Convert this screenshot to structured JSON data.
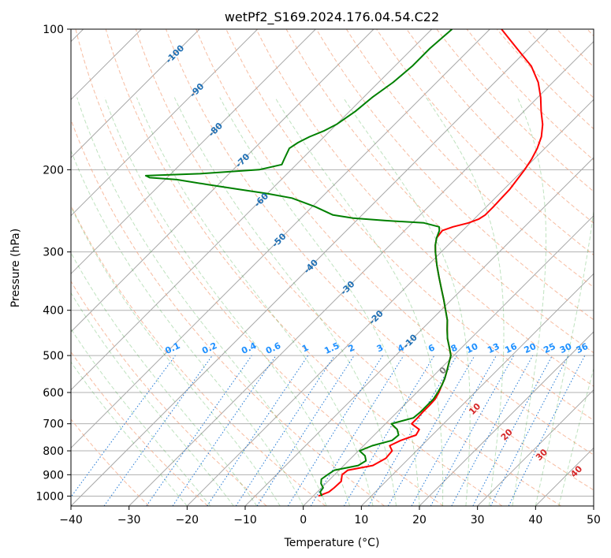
{
  "chart_data": {
    "type": "skew-t",
    "title": "wetPf2_S169.2024.176.04.54.C22",
    "xlabel": "Temperature (°C)",
    "ylabel": "Pressure (hPa)",
    "xlim": [
      -40,
      50
    ],
    "ylim": [
      1050,
      100
    ],
    "y_scale": "log",
    "grid": true,
    "x_ticks": [
      "−40",
      "−30",
      "−20",
      "−10",
      "0",
      "10",
      "20",
      "30",
      "40",
      "50"
    ],
    "x_tick_values": [
      -40,
      -30,
      -20,
      -10,
      0,
      10,
      20,
      30,
      40,
      50
    ],
    "y_ticks": [
      "100",
      "200",
      "300",
      "400",
      "500",
      "600",
      "700",
      "800",
      "900",
      "1000"
    ],
    "y_tick_values": [
      100,
      200,
      300,
      400,
      500,
      600,
      700,
      800,
      900,
      1000
    ],
    "skew_deg": 45,
    "isotherm_labels": [
      {
        "text": "-100",
        "value": -100,
        "p": 113
      },
      {
        "text": "-90",
        "value": -90,
        "p": 135
      },
      {
        "text": "-80",
        "value": -80,
        "p": 164
      },
      {
        "text": "-70",
        "value": -70,
        "p": 191
      },
      {
        "text": "-60",
        "value": -60,
        "p": 232
      },
      {
        "text": "-50",
        "value": -50,
        "p": 283
      },
      {
        "text": "-40",
        "value": -40,
        "p": 322
      },
      {
        "text": "-30",
        "value": -30,
        "p": 358
      },
      {
        "text": "-20",
        "value": -20,
        "p": 414
      },
      {
        "text": "-10",
        "value": -10,
        "p": 466
      }
    ],
    "moist_adiabat_labels": [
      {
        "text": "0",
        "t": 24,
        "p": 538,
        "color": "#7f7f7f"
      },
      {
        "text": "10",
        "t": 29.5,
        "p": 650,
        "color": "#d62728"
      },
      {
        "text": "20",
        "t": 35,
        "p": 738,
        "color": "#d62728"
      },
      {
        "text": "30",
        "t": 41,
        "p": 815,
        "color": "#d62728"
      },
      {
        "text": "40",
        "t": 47,
        "p": 885,
        "color": "#d62728"
      }
    ],
    "mixing_ratio_labels": [
      "0.1",
      "0.2",
      "0.4",
      "0.6",
      "1",
      "1.5",
      "2",
      "3",
      "4",
      "6",
      "8",
      "10",
      "13",
      "16",
      "20",
      "25",
      "30",
      "36"
    ],
    "mixing_ratio_values": [
      0.1,
      0.2,
      0.4,
      0.6,
      1,
      1.5,
      2,
      3,
      4,
      6,
      8,
      10,
      13,
      16,
      20,
      25,
      30,
      36
    ],
    "series": [
      {
        "color": "#ff0000",
        "p": [
          1000,
          980,
          960,
          930,
          900,
          880,
          860,
          830,
          800,
          780,
          760,
          740,
          720,
          700,
          680,
          660,
          640,
          620,
          600,
          580,
          560,
          540,
          520,
          500,
          480,
          460,
          440,
          420,
          400,
          380,
          360,
          340,
          320,
          300,
          290,
          280,
          270,
          265,
          260,
          255,
          250,
          240,
          230,
          220,
          210,
          200,
          190,
          180,
          170,
          160,
          150,
          140,
          130,
          120,
          110,
          100
        ],
        "t": [
          0.9,
          2.0,
          2.2,
          2.3,
          1.3,
          1.5,
          5.0,
          6.0,
          5.8,
          4.5,
          5.5,
          7.2,
          6.8,
          4.5,
          4.5,
          4.4,
          4.4,
          4.3,
          3.8,
          3.1,
          2.4,
          1.5,
          0.5,
          -0.5,
          -2.2,
          -4.0,
          -5.6,
          -7.2,
          -9.2,
          -11.3,
          -13.6,
          -16.0,
          -18.5,
          -21.0,
          -22.2,
          -23.2,
          -23.5,
          -22.3,
          -20.3,
          -19.2,
          -18.8,
          -18.8,
          -18.9,
          -19.0,
          -19.4,
          -19.8,
          -20.4,
          -21.3,
          -22.6,
          -24.5,
          -27.0,
          -29.5,
          -32.5,
          -36.5,
          -42.0,
          -48.0
        ]
      },
      {
        "color": "#008000",
        "p": [
          1000,
          980,
          960,
          940,
          920,
          900,
          880,
          860,
          840,
          820,
          800,
          780,
          760,
          740,
          720,
          700,
          680,
          660,
          640,
          620,
          600,
          580,
          560,
          540,
          520,
          500,
          480,
          460,
          440,
          420,
          400,
          380,
          360,
          340,
          320,
          300,
          290,
          280,
          270,
          265,
          260,
          257,
          254,
          250,
          240,
          230,
          225,
          220,
          215,
          210,
          208,
          206,
          204,
          200,
          195,
          190,
          185,
          180,
          175,
          170,
          165,
          160,
          150,
          140,
          130,
          120,
          110,
          100
        ],
        "t": [
          1.5,
          0.5,
          0.3,
          -0.8,
          -1.5,
          -1.2,
          -0.8,
          2.5,
          3.0,
          2.0,
          0.2,
          1.5,
          4.0,
          4.2,
          3.0,
          1.0,
          3.8,
          4.0,
          4.0,
          4.0,
          3.6,
          3.1,
          2.4,
          1.5,
          0.5,
          -0.5,
          -2.2,
          -4.0,
          -5.6,
          -7.2,
          -9.2,
          -11.3,
          -13.6,
          -16.0,
          -18.5,
          -21.0,
          -22.2,
          -23.2,
          -24.0,
          -24.7,
          -28.0,
          -35.0,
          -41.0,
          -45.0,
          -49.5,
          -55.0,
          -60.0,
          -66.0,
          -72.0,
          -78.0,
          -83.0,
          -84.0,
          -75.0,
          -65.5,
          -62.5,
          -63.0,
          -63.5,
          -64.0,
          -63.5,
          -62.5,
          -61.0,
          -60.0,
          -59.0,
          -58.5,
          -57.5,
          -57.0,
          -57.0,
          -56.5
        ]
      }
    ]
  }
}
